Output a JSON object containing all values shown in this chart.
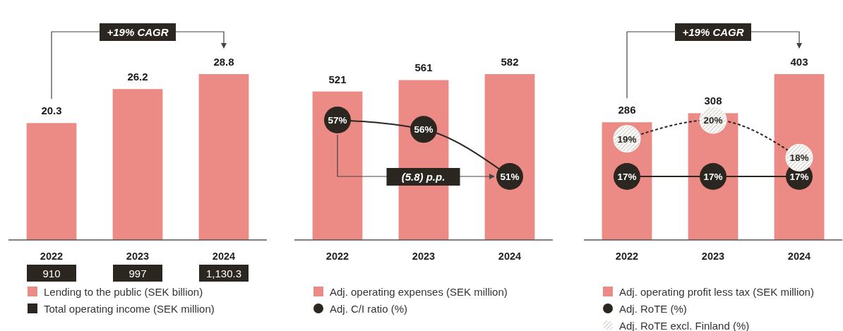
{
  "chart_data": [
    {
      "type": "bar",
      "categories": [
        "2022",
        "2023",
        "2024"
      ],
      "data_labels": true,
      "legend": "bottom",
      "series": [
        {
          "name": "Lending to the public (SEK billion)",
          "color": "#ec8a85",
          "values": [
            20.3,
            26.2,
            28.8
          ]
        }
      ],
      "annotations": [
        "+19% CAGR",
        "Total operating income (SEK million)",
        "910",
        "997",
        "1,130.3"
      ]
    },
    {
      "type": "bar",
      "categories": [
        "2022",
        "2023",
        "2024"
      ],
      "data_labels": true,
      "legend": "bottom",
      "marker": "circle",
      "series": [
        {
          "name": "Adj. operating expenses (SEK million)",
          "color": "#ec8a85",
          "values": [
            521,
            561,
            582
          ]
        },
        {
          "name": "Adj. C/I ratio (%)",
          "type": "line",
          "axis": "y2",
          "color": "#2b2620",
          "values": [
            57,
            56,
            51
          ],
          "value_labels": [
            "57%",
            "56%",
            "51%"
          ]
        }
      ],
      "annotations": [
        "(5.8) p.p."
      ]
    },
    {
      "type": "bar",
      "categories": [
        "2022",
        "2023",
        "2024"
      ],
      "data_labels": true,
      "legend": "bottom",
      "marker": "circle",
      "series": [
        {
          "name": "Adj. operating profit less tax (SEK million)",
          "color": "#ec8a85",
          "values": [
            286,
            308,
            403
          ]
        },
        {
          "name": "Adj. RoTE (%)",
          "type": "line",
          "axis": "y2",
          "color": "#2b2620",
          "values": [
            17,
            17,
            17
          ],
          "value_labels": [
            "17%",
            "17%",
            "17%"
          ]
        },
        {
          "name": "Adj. RoTE excl. Finland (%)",
          "type": "line",
          "axis": "y2",
          "color": "#2b2620",
          "line_style": "dashed",
          "values": [
            19,
            20,
            18
          ],
          "value_labels": [
            "19%",
            "20%",
            "18%"
          ]
        }
      ],
      "annotations": [
        "+19% CAGR"
      ]
    }
  ]
}
